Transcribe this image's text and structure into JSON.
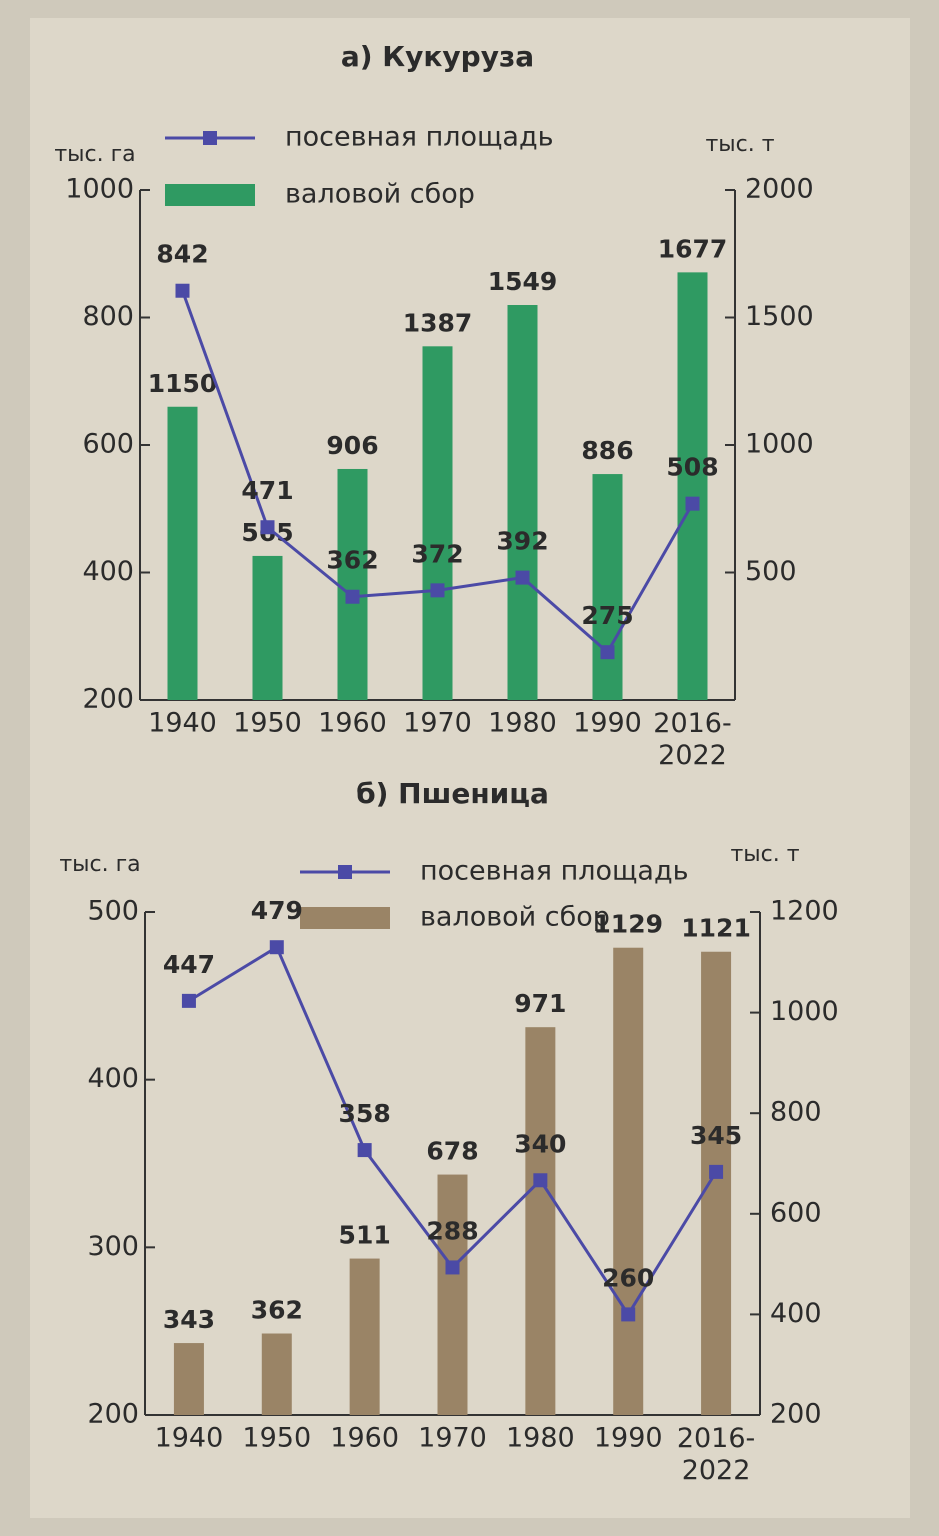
{
  "chart_data": [
    {
      "type": "combo",
      "title": "а) Кукуруза",
      "y_label": "тыс. га",
      "y2_label": "тыс. т",
      "categories": [
        "1940",
        "1950",
        "1960",
        "1970",
        "1980",
        "1990",
        "2016-2022"
      ],
      "ylim": [
        200,
        1000
      ],
      "yticks": [
        200,
        400,
        600,
        800,
        1000
      ],
      "y2lim": [
        0,
        2000
      ],
      "y2ticks": [
        500,
        1000,
        1500,
        2000
      ],
      "series": [
        {
          "name": "посевная площадь",
          "type": "line",
          "color": "#4b4aa6",
          "values": [
            842,
            471,
            362,
            372,
            392,
            275,
            508
          ]
        },
        {
          "name": "валовой сбор",
          "type": "bar",
          "axis": "y2",
          "color": "#2f9a62",
          "values": [
            1150,
            565,
            906,
            1387,
            1549,
            886,
            1677
          ]
        }
      ]
    },
    {
      "type": "combo",
      "title": "б) Пшеница",
      "y_label": "тыс. га",
      "y2_label": "тыс. т",
      "categories": [
        "1940",
        "1950",
        "1960",
        "1970",
        "1980",
        "1990",
        "2016-2022"
      ],
      "ylim": [
        200,
        500
      ],
      "yticks": [
        200,
        300,
        400,
        500
      ],
      "y2lim": [
        200,
        1200
      ],
      "y2ticks": [
        200,
        400,
        600,
        800,
        1000,
        1200
      ],
      "series": [
        {
          "name": "посевная площадь",
          "type": "line",
          "color": "#4b4aa6",
          "values": [
            447,
            479,
            358,
            288,
            340,
            260,
            345
          ]
        },
        {
          "name": "валовой сбор",
          "type": "bar",
          "axis": "y2",
          "color": "#9a8466",
          "values": [
            343,
            362,
            511,
            678,
            971,
            1129,
            1121
          ]
        }
      ]
    }
  ]
}
